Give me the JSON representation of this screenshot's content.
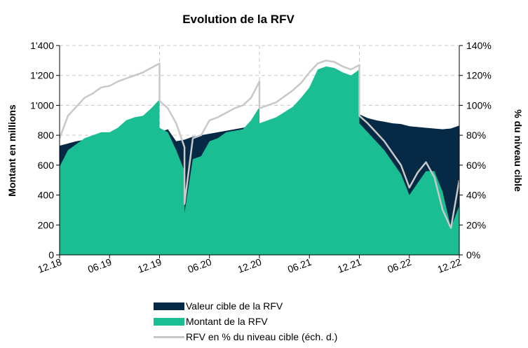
{
  "chart_data": {
    "type": "area",
    "title": "Evolution de la RFV",
    "ylabel": "Montant en millions",
    "y2label": "% du niveau cible",
    "x_ticks": [
      "12.18",
      "06.19",
      "12.19",
      "06.20",
      "12.20",
      "06.21",
      "12.21",
      "06.22",
      "12.22"
    ],
    "y_ticks": [
      "0",
      "200",
      "400",
      "600",
      "800",
      "1'000",
      "1'200",
      "1'400"
    ],
    "y2_ticks": [
      "0%",
      "20%",
      "40%",
      "60%",
      "80%",
      "100%",
      "120%",
      "140%"
    ],
    "ylim": [
      0,
      1400
    ],
    "y2lim": [
      0,
      1.4
    ],
    "xlim": [
      "12.18",
      "12.22"
    ],
    "legend_position": "bottom",
    "vertical_gridlines_at": [
      "12.19",
      "12.20",
      "12.21"
    ],
    "series": [
      {
        "name": "Valeur cible de la RFV",
        "kind": "area",
        "color": "#062a45",
        "x": [
          "12.18",
          "02.19",
          "04.19",
          "06.19",
          "08.19",
          "10.19",
          "12.19",
          "01.20",
          "02.20",
          "03.20",
          "04.20",
          "05.20",
          "06.20",
          "08.20",
          "10.20",
          "12.20",
          "02.21",
          "04.21",
          "06.21",
          "08.21",
          "10.21",
          "12.21",
          "01.22",
          "02.22",
          "03.22",
          "04.22",
          "05.22",
          "06.22",
          "08.22",
          "10.22",
          "11.22",
          "12.22"
        ],
        "values": [
          730,
          760,
          780,
          790,
          800,
          810,
          820,
          840,
          760,
          770,
          790,
          800,
          810,
          830,
          850,
          870,
          890,
          900,
          920,
          940,
          950,
          940,
          915,
          900,
          890,
          880,
          875,
          860,
          850,
          840,
          845,
          865
        ]
      },
      {
        "name": "Montant de la RFV",
        "kind": "area",
        "color": "#1bbd93",
        "x": [
          "12.18",
          "01.19",
          "03.19",
          "04.19",
          "05.19",
          "06.19",
          "07.19",
          "08.19",
          "09.19",
          "10.19",
          "11.19",
          "12.19",
          "12.19b",
          "01.20",
          "02.20",
          "03.20",
          "03.20b",
          "04.20",
          "05.20",
          "06.20",
          "07.20",
          "08.20",
          "09.20",
          "10.20",
          "11.20",
          "12.20",
          "12.20b",
          "02.21",
          "04.21",
          "05.21",
          "06.21",
          "07.21",
          "08.21",
          "09.21",
          "10.21",
          "11.21",
          "12.21",
          "12.21b",
          "01.22",
          "02.22",
          "03.22",
          "04.22",
          "05.22",
          "06.22",
          "07.22",
          "08.22",
          "09.22",
          "10.22",
          "11.22",
          "12.22"
        ],
        "values": [
          590,
          700,
          780,
          800,
          820,
          820,
          850,
          900,
          920,
          930,
          980,
          1040,
          850,
          820,
          700,
          560,
          280,
          640,
          660,
          760,
          780,
          820,
          830,
          840,
          900,
          990,
          880,
          920,
          990,
          1050,
          1120,
          1240,
          1260,
          1250,
          1220,
          1200,
          1240,
          880,
          820,
          760,
          700,
          620,
          540,
          400,
          480,
          560,
          560,
          420,
          180,
          330
        ]
      },
      {
        "name": "RFV en % du niveau cible (éch. d.)",
        "kind": "line",
        "axis": "right",
        "color": "#c8c8c8",
        "x": [
          "12.18",
          "01.19",
          "03.19",
          "04.19",
          "05.19",
          "06.19",
          "07.19",
          "08.19",
          "09.19",
          "10.19",
          "11.19",
          "12.19",
          "12.19b",
          "01.20",
          "02.20",
          "03.20",
          "03.20b",
          "04.20",
          "05.20",
          "06.20",
          "07.20",
          "08.20",
          "09.20",
          "10.20",
          "11.20",
          "12.20",
          "12.20b",
          "02.21",
          "04.21",
          "05.21",
          "06.21",
          "07.21",
          "08.21",
          "09.21",
          "10.21",
          "11.21",
          "12.21",
          "12.21b",
          "01.22",
          "02.22",
          "03.22",
          "04.22",
          "05.22",
          "06.22",
          "07.22",
          "08.22",
          "09.22",
          "10.22",
          "11.22",
          "12.22"
        ],
        "values": [
          0.78,
          0.93,
          1.05,
          1.08,
          1.12,
          1.13,
          1.16,
          1.18,
          1.2,
          1.22,
          1.25,
          1.28,
          1.03,
          0.98,
          0.88,
          0.72,
          0.34,
          0.78,
          0.8,
          0.9,
          0.92,
          0.95,
          0.98,
          1.0,
          1.05,
          1.16,
          0.98,
          1.02,
          1.1,
          1.15,
          1.22,
          1.28,
          1.3,
          1.29,
          1.26,
          1.24,
          1.27,
          0.93,
          0.88,
          0.82,
          0.76,
          0.68,
          0.6,
          0.45,
          0.55,
          0.62,
          0.52,
          0.3,
          0.18,
          0.5
        ]
      }
    ]
  },
  "legend": {
    "items": [
      {
        "label": "Valeur cible de la RFV",
        "color": "#062a45"
      },
      {
        "label": "Montant de la RFV",
        "color": "#1bbd93"
      },
      {
        "label": "RFV en % du niveau cible (éch. d.)",
        "color": "#c8c8c8"
      }
    ]
  }
}
